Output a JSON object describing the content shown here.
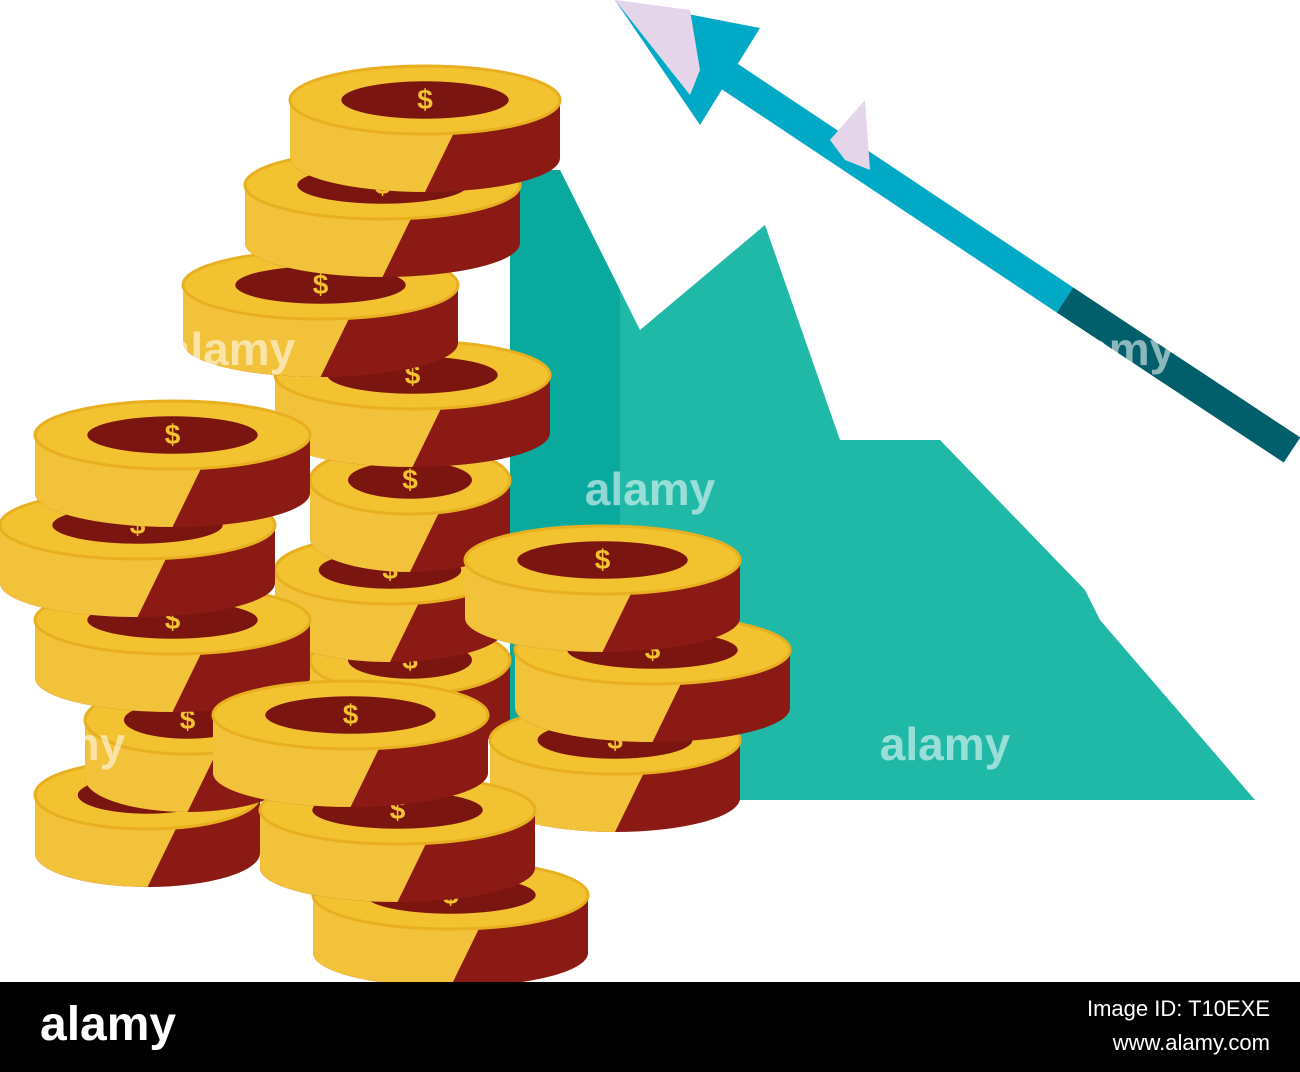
{
  "coin_symbol": "$",
  "watermarks": [
    "alamy",
    "alamy",
    "alamy",
    "alamy",
    "alamy"
  ],
  "footer": {
    "logo": "alamy",
    "image_id": "Image ID: T10EXE",
    "url": "www.alamy.com"
  }
}
